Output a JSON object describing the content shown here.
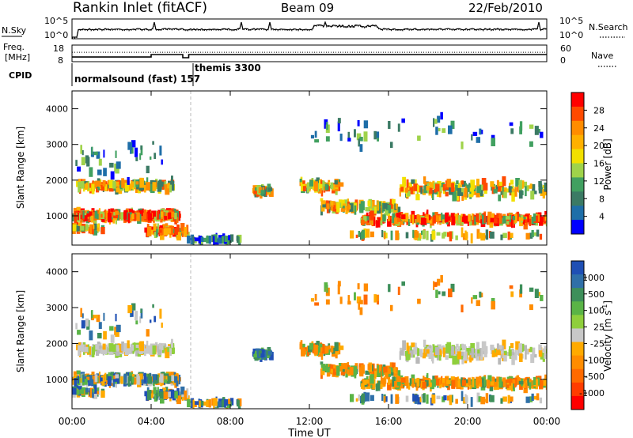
{
  "header": {
    "station": "Rankin Inlet (fitACF)",
    "beam": "Beam 09",
    "date": "22/Feb/2010"
  },
  "top_panels": {
    "nsky_label": "N.Sky",
    "nsky_ticks": [
      "10^5",
      "10^0"
    ],
    "nsearch_label": "N.Search",
    "nsearch_ticks": [
      "10^5",
      "10^0"
    ],
    "freq_label": "Freq.",
    "freq_unit": "[MHz]",
    "freq_ticks": [
      "18",
      "8"
    ],
    "nave_label": "Nave",
    "nave_ticks": [
      "60",
      "0"
    ],
    "cpid_label": "CPID",
    "cpid_modes": [
      {
        "label": "normalsound (fast) 157",
        "start": "00:00",
        "end": "06:00"
      },
      {
        "label": "themis 3300",
        "start": "06:00",
        "end": "24:00"
      }
    ],
    "freq_series": {
      "x_hours": [
        0,
        4.0,
        4.0,
        5.6,
        5.6,
        5.9,
        5.9,
        24
      ],
      "mhz": [
        10.8,
        10.8,
        12.3,
        12.3,
        10.4,
        10.4,
        12.3,
        12.3
      ]
    },
    "nave_series": {
      "x_hours": [
        0,
        24
      ],
      "value": [
        34,
        34
      ]
    }
  },
  "chart_data": [
    {
      "type": "heatmap",
      "name": "power",
      "xlabel": "",
      "ylabel": "Slant Range [km]",
      "xlim": [
        "00:00",
        "24:00"
      ],
      "ylim": [
        180,
        4500
      ],
      "x_ticks": [
        "00:00",
        "04:00",
        "08:00",
        "12:00",
        "16:00",
        "20:00",
        "00:00"
      ],
      "y_ticks": [
        1000,
        2000,
        3000,
        4000
      ],
      "colorbar_label": "Power [dB]",
      "colorbar_ticks": [
        28,
        24,
        20,
        16,
        12,
        8,
        4
      ],
      "colorbar_colors": [
        "#ff0000",
        "#ff4a00",
        "#ff8c00",
        "#ffb000",
        "#f2e000",
        "#9fd34a",
        "#41a060",
        "#3b7a64",
        "#1e6ea8",
        "#0000ff"
      ],
      "mode_change_hour": 6.0
    },
    {
      "type": "heatmap",
      "name": "velocity",
      "xlabel": "Time UT",
      "ylabel": "Slant Range [km]",
      "xlim": [
        "00:00",
        "24:00"
      ],
      "ylim": [
        180,
        4500
      ],
      "x_ticks": [
        "00:00",
        "04:00",
        "08:00",
        "12:00",
        "16:00",
        "20:00",
        "00:00"
      ],
      "y_ticks": [
        1000,
        2000,
        3000,
        4000
      ],
      "colorbar_label": "Velocity [m s^-1]",
      "colorbar_ticks": [
        "1000",
        "500",
        "100",
        "25",
        "-25",
        "-100",
        "-500",
        "-1000"
      ],
      "colorbar_colors": [
        "#1f4fb4",
        "#2f6fa8",
        "#3d8f5a",
        "#5ab446",
        "#8fcf3c",
        "#c8c8c8",
        "#ffaa00",
        "#ff8c00",
        "#ff6a00",
        "#ff3c00",
        "#ff0000"
      ],
      "mode_change_hour": 6.0
    }
  ]
}
